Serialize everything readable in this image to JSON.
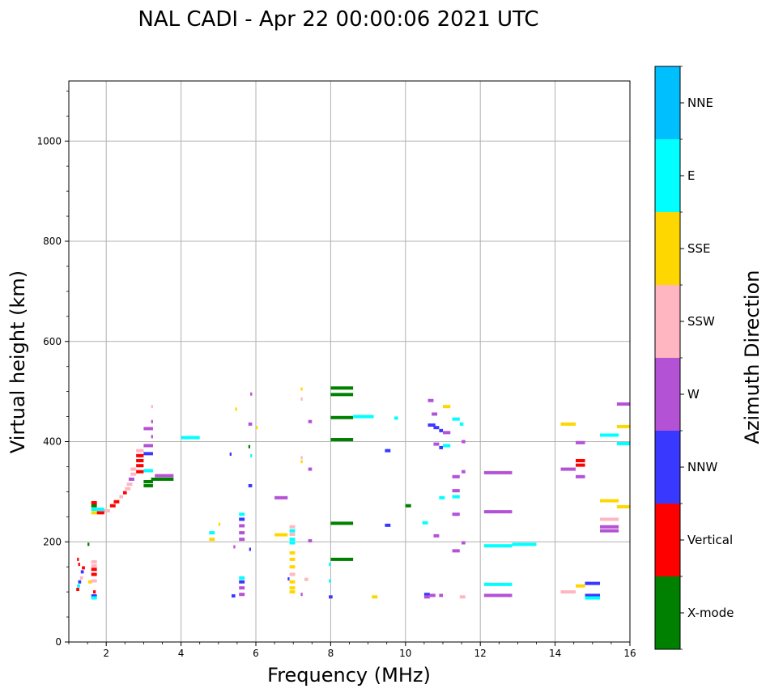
{
  "chart_data": {
    "type": "scatter",
    "title": "NAL CADI - Apr 22 00:00:06 2021 UTC",
    "xlabel": "Frequency (MHz)",
    "ylabel": "Virtual height (km)",
    "xlim": [
      1.0,
      16.0
    ],
    "ylim": [
      0,
      1120
    ],
    "xticks": [
      2,
      4,
      6,
      8,
      10,
      12,
      14,
      16
    ],
    "yticks": [
      0,
      200,
      400,
      600,
      800,
      1000
    ],
    "grid": true,
    "colorbar": {
      "label": "Azimuth Direction",
      "categories": [
        "X-mode",
        "Vertical",
        "NNW",
        "W",
        "SSW",
        "SSE",
        "E",
        "NNE"
      ],
      "colors": [
        "#008000",
        "#ff0000",
        "#3838ff",
        "#b452d6",
        "#ffb6c1",
        "#ffd700",
        "#00ffff",
        "#00bfff"
      ]
    },
    "echoes": [
      {
        "f": 1.65,
        "f2": 1.72,
        "h": 100,
        "dir": "Vertical"
      },
      {
        "f": 1.6,
        "f2": 1.75,
        "h": 92,
        "dir": "NNW"
      },
      {
        "f": 1.6,
        "f2": 1.75,
        "h": 88,
        "dir": "E"
      },
      {
        "f": 1.52,
        "f2": 1.62,
        "h": 120,
        "dir": "SSE"
      },
      {
        "f": 1.6,
        "f2": 1.75,
        "h": 122,
        "dir": "SSW"
      },
      {
        "f": 1.6,
        "f2": 1.75,
        "h": 135,
        "dir": "Vertical"
      },
      {
        "f": 1.6,
        "f2": 1.75,
        "h": 145,
        "dir": "Vertical"
      },
      {
        "f": 1.6,
        "f2": 1.75,
        "h": 152,
        "dir": "SSW"
      },
      {
        "f": 1.6,
        "f2": 1.75,
        "h": 160,
        "dir": "SSW"
      },
      {
        "f": 1.2,
        "f2": 1.28,
        "h": 105,
        "dir": "Vertical"
      },
      {
        "f": 1.22,
        "f2": 1.3,
        "h": 112,
        "dir": "E"
      },
      {
        "f": 1.25,
        "f2": 1.33,
        "h": 120,
        "dir": "NNW"
      },
      {
        "f": 1.3,
        "f2": 1.38,
        "h": 128,
        "dir": "SSW"
      },
      {
        "f": 1.32,
        "f2": 1.4,
        "h": 140,
        "dir": "NNW"
      },
      {
        "f": 1.35,
        "f2": 1.43,
        "h": 148,
        "dir": "Vertical"
      },
      {
        "f": 1.25,
        "f2": 1.3,
        "h": 155,
        "dir": "Vertical"
      },
      {
        "f": 1.22,
        "f2": 1.27,
        "h": 165,
        "dir": "Vertical"
      },
      {
        "f": 1.5,
        "f2": 1.55,
        "h": 195,
        "dir": "X-mode"
      },
      {
        "f": 1.6,
        "f2": 1.75,
        "h": 258,
        "dir": "SSE"
      },
      {
        "f": 1.6,
        "f2": 1.75,
        "h": 265,
        "dir": "E"
      },
      {
        "f": 1.6,
        "f2": 1.75,
        "h": 272,
        "dir": "X-mode"
      },
      {
        "f": 1.6,
        "f2": 1.75,
        "h": 278,
        "dir": "Vertical"
      },
      {
        "f": 1.75,
        "f2": 1.95,
        "h": 258,
        "dir": "Vertical"
      },
      {
        "f": 1.75,
        "f2": 1.95,
        "h": 265,
        "dir": "E"
      },
      {
        "f": 1.95,
        "f2": 2.1,
        "h": 262,
        "dir": "SSW"
      },
      {
        "f": 2.1,
        "f2": 2.25,
        "h": 272,
        "dir": "Vertical"
      },
      {
        "f": 2.2,
        "f2": 2.35,
        "h": 280,
        "dir": "Vertical"
      },
      {
        "f": 2.35,
        "f2": 2.45,
        "h": 290,
        "dir": "SSW"
      },
      {
        "f": 2.45,
        "f2": 2.55,
        "h": 298,
        "dir": "Vertical"
      },
      {
        "f": 2.5,
        "f2": 2.65,
        "h": 306,
        "dir": "SSW"
      },
      {
        "f": 2.55,
        "f2": 2.7,
        "h": 315,
        "dir": "SSW"
      },
      {
        "f": 2.6,
        "f2": 2.75,
        "h": 325,
        "dir": "W"
      },
      {
        "f": 2.65,
        "f2": 2.8,
        "h": 335,
        "dir": "SSW"
      },
      {
        "f": 2.65,
        "f2": 2.8,
        "h": 345,
        "dir": "SSW"
      },
      {
        "f": 2.8,
        "f2": 3.0,
        "h": 340,
        "dir": "Vertical"
      },
      {
        "f": 2.8,
        "f2": 3.0,
        "h": 352,
        "dir": "Vertical"
      },
      {
        "f": 2.8,
        "f2": 3.0,
        "h": 362,
        "dir": "Vertical"
      },
      {
        "f": 2.8,
        "f2": 3.0,
        "h": 372,
        "dir": "Vertical"
      },
      {
        "f": 2.8,
        "f2": 3.0,
        "h": 382,
        "dir": "SSW"
      },
      {
        "f": 3.0,
        "f2": 3.25,
        "h": 312,
        "dir": "X-mode"
      },
      {
        "f": 3.0,
        "f2": 3.25,
        "h": 320,
        "dir": "X-mode"
      },
      {
        "f": 3.0,
        "f2": 3.25,
        "h": 342,
        "dir": "E"
      },
      {
        "f": 3.0,
        "f2": 3.25,
        "h": 376,
        "dir": "NNW"
      },
      {
        "f": 3.0,
        "f2": 3.25,
        "h": 392,
        "dir": "W"
      },
      {
        "f": 3.0,
        "f2": 3.25,
        "h": 426,
        "dir": "W"
      },
      {
        "f": 3.2,
        "f2": 3.8,
        "h": 325,
        "dir": "X-mode"
      },
      {
        "f": 3.3,
        "f2": 3.8,
        "h": 332,
        "dir": "W"
      },
      {
        "f": 3.2,
        "f2": 3.25,
        "h": 410,
        "dir": "W"
      },
      {
        "f": 3.2,
        "f2": 3.25,
        "h": 440,
        "dir": "W"
      },
      {
        "f": 3.2,
        "f2": 3.25,
        "h": 470,
        "dir": "SSW"
      },
      {
        "f": 4.0,
        "f2": 4.5,
        "h": 408,
        "dir": "E"
      },
      {
        "f": 4.75,
        "f2": 4.9,
        "h": 218,
        "dir": "E"
      },
      {
        "f": 4.75,
        "f2": 4.9,
        "h": 205,
        "dir": "SSE"
      },
      {
        "f": 5.0,
        "f2": 5.05,
        "h": 235,
        "dir": "SSE"
      },
      {
        "f": 5.3,
        "f2": 5.35,
        "h": 375,
        "dir": "NNW"
      },
      {
        "f": 5.45,
        "f2": 5.5,
        "h": 465,
        "dir": "SSE"
      },
      {
        "f": 5.55,
        "f2": 5.7,
        "h": 255,
        "dir": "E"
      },
      {
        "f": 5.55,
        "f2": 5.7,
        "h": 245,
        "dir": "NNW"
      },
      {
        "f": 5.55,
        "f2": 5.7,
        "h": 232,
        "dir": "W"
      },
      {
        "f": 5.55,
        "f2": 5.7,
        "h": 218,
        "dir": "W"
      },
      {
        "f": 5.55,
        "f2": 5.7,
        "h": 205,
        "dir": "W"
      },
      {
        "f": 5.55,
        "f2": 5.7,
        "h": 128,
        "dir": "E"
      },
      {
        "f": 5.55,
        "f2": 5.7,
        "h": 120,
        "dir": "NNW"
      },
      {
        "f": 5.55,
        "f2": 5.7,
        "h": 108,
        "dir": "W"
      },
      {
        "f": 5.55,
        "f2": 5.7,
        "h": 95,
        "dir": "W"
      },
      {
        "f": 5.35,
        "f2": 5.45,
        "h": 92,
        "dir": "NNW"
      },
      {
        "f": 5.4,
        "f2": 5.45,
        "h": 190,
        "dir": "W"
      },
      {
        "f": 5.8,
        "f2": 5.9,
        "h": 312,
        "dir": "NNW"
      },
      {
        "f": 5.8,
        "f2": 5.9,
        "h": 435,
        "dir": "W"
      },
      {
        "f": 5.85,
        "f2": 5.9,
        "h": 495,
        "dir": "W"
      },
      {
        "f": 5.82,
        "f2": 5.87,
        "h": 185,
        "dir": "NNW"
      },
      {
        "f": 5.8,
        "f2": 5.85,
        "h": 390,
        "dir": "X-mode"
      },
      {
        "f": 5.85,
        "f2": 5.9,
        "h": 372,
        "dir": "E"
      },
      {
        "f": 6.0,
        "f2": 6.05,
        "h": 428,
        "dir": "SSE"
      },
      {
        "f": 6.5,
        "f2": 6.85,
        "h": 288,
        "dir": "W"
      },
      {
        "f": 6.5,
        "f2": 6.85,
        "h": 214,
        "dir": "SSE"
      },
      {
        "f": 6.9,
        "f2": 7.05,
        "h": 230,
        "dir": "SSW"
      },
      {
        "f": 6.9,
        "f2": 7.05,
        "h": 222,
        "dir": "E"
      },
      {
        "f": 6.9,
        "f2": 7.05,
        "h": 215,
        "dir": "SSW"
      },
      {
        "f": 6.9,
        "f2": 7.05,
        "h": 205,
        "dir": "E"
      },
      {
        "f": 6.9,
        "f2": 7.05,
        "h": 198,
        "dir": "E"
      },
      {
        "f": 6.9,
        "f2": 7.05,
        "h": 178,
        "dir": "SSE"
      },
      {
        "f": 6.9,
        "f2": 7.05,
        "h": 165,
        "dir": "SSE"
      },
      {
        "f": 6.9,
        "f2": 7.05,
        "h": 150,
        "dir": "SSE"
      },
      {
        "f": 6.9,
        "f2": 7.05,
        "h": 135,
        "dir": "SSW"
      },
      {
        "f": 6.9,
        "f2": 7.05,
        "h": 120,
        "dir": "SSE"
      },
      {
        "f": 6.9,
        "f2": 7.05,
        "h": 108,
        "dir": "SSE"
      },
      {
        "f": 6.9,
        "f2": 7.05,
        "h": 100,
        "dir": "SSE"
      },
      {
        "f": 6.85,
        "f2": 6.9,
        "h": 126,
        "dir": "NNW"
      },
      {
        "f": 7.2,
        "f2": 7.25,
        "h": 505,
        "dir": "SSE"
      },
      {
        "f": 7.2,
        "f2": 7.25,
        "h": 485,
        "dir": "SSW"
      },
      {
        "f": 7.2,
        "f2": 7.25,
        "h": 368,
        "dir": "SSW"
      },
      {
        "f": 7.2,
        "f2": 7.25,
        "h": 360,
        "dir": "SSE"
      },
      {
        "f": 7.4,
        "f2": 7.5,
        "h": 440,
        "dir": "W"
      },
      {
        "f": 7.4,
        "f2": 7.5,
        "h": 345,
        "dir": "W"
      },
      {
        "f": 7.4,
        "f2": 7.5,
        "h": 202,
        "dir": "W"
      },
      {
        "f": 7.3,
        "f2": 7.4,
        "h": 125,
        "dir": "SSW"
      },
      {
        "f": 7.2,
        "f2": 7.25,
        "h": 95,
        "dir": "W"
      },
      {
        "f": 8.0,
        "f2": 8.6,
        "h": 507,
        "dir": "X-mode"
      },
      {
        "f": 8.0,
        "f2": 8.6,
        "h": 494,
        "dir": "X-mode"
      },
      {
        "f": 8.0,
        "f2": 8.6,
        "h": 448,
        "dir": "X-mode"
      },
      {
        "f": 8.0,
        "f2": 8.6,
        "h": 404,
        "dir": "X-mode"
      },
      {
        "f": 8.0,
        "f2": 8.6,
        "h": 237,
        "dir": "X-mode"
      },
      {
        "f": 8.0,
        "f2": 8.6,
        "h": 165,
        "dir": "X-mode"
      },
      {
        "f": 7.95,
        "f2": 8.0,
        "h": 155,
        "dir": "E"
      },
      {
        "f": 7.95,
        "f2": 8.0,
        "h": 122,
        "dir": "E"
      },
      {
        "f": 7.95,
        "f2": 8.05,
        "h": 90,
        "dir": "NNW"
      },
      {
        "f": 8.6,
        "f2": 9.15,
        "h": 450,
        "dir": "E"
      },
      {
        "f": 9.1,
        "f2": 9.25,
        "h": 90,
        "dir": "SSE"
      },
      {
        "f": 9.45,
        "f2": 9.6,
        "h": 382,
        "dir": "NNW"
      },
      {
        "f": 9.45,
        "f2": 9.6,
        "h": 233,
        "dir": "NNW"
      },
      {
        "f": 9.7,
        "f2": 9.8,
        "h": 447,
        "dir": "E"
      },
      {
        "f": 10.0,
        "f2": 10.15,
        "h": 272,
        "dir": "X-mode"
      },
      {
        "f": 10.45,
        "f2": 10.6,
        "h": 238,
        "dir": "E"
      },
      {
        "f": 10.5,
        "f2": 10.65,
        "h": 95,
        "dir": "NNW"
      },
      {
        "f": 10.5,
        "f2": 10.65,
        "h": 90,
        "dir": "W"
      },
      {
        "f": 10.6,
        "f2": 10.75,
        "h": 482,
        "dir": "W"
      },
      {
        "f": 10.7,
        "f2": 10.85,
        "h": 455,
        "dir": "W"
      },
      {
        "f": 10.6,
        "f2": 10.8,
        "h": 433,
        "dir": "NNW"
      },
      {
        "f": 10.75,
        "f2": 10.9,
        "h": 428,
        "dir": "NNW"
      },
      {
        "f": 10.9,
        "f2": 11.0,
        "h": 422,
        "dir": "NNW"
      },
      {
        "f": 10.75,
        "f2": 10.9,
        "h": 395,
        "dir": "W"
      },
      {
        "f": 10.9,
        "f2": 11.0,
        "h": 388,
        "dir": "NNW"
      },
      {
        "f": 11.0,
        "f2": 11.2,
        "h": 392,
        "dir": "E"
      },
      {
        "f": 10.9,
        "f2": 11.05,
        "h": 288,
        "dir": "E"
      },
      {
        "f": 10.75,
        "f2": 10.9,
        "h": 212,
        "dir": "W"
      },
      {
        "f": 10.65,
        "f2": 10.8,
        "h": 93,
        "dir": "W"
      },
      {
        "f": 10.9,
        "f2": 11.0,
        "h": 93,
        "dir": "W"
      },
      {
        "f": 11.0,
        "f2": 11.2,
        "h": 470,
        "dir": "SSE"
      },
      {
        "f": 11.0,
        "f2": 11.2,
        "h": 418,
        "dir": "W"
      },
      {
        "f": 11.25,
        "f2": 11.45,
        "h": 445,
        "dir": "E"
      },
      {
        "f": 11.45,
        "f2": 11.55,
        "h": 435,
        "dir": "E"
      },
      {
        "f": 11.5,
        "f2": 11.6,
        "h": 400,
        "dir": "W"
      },
      {
        "f": 11.5,
        "f2": 11.6,
        "h": 340,
        "dir": "W"
      },
      {
        "f": 11.25,
        "f2": 11.45,
        "h": 330,
        "dir": "W"
      },
      {
        "f": 11.25,
        "f2": 11.45,
        "h": 302,
        "dir": "W"
      },
      {
        "f": 11.25,
        "f2": 11.45,
        "h": 290,
        "dir": "E"
      },
      {
        "f": 11.25,
        "f2": 11.45,
        "h": 255,
        "dir": "W"
      },
      {
        "f": 11.5,
        "f2": 11.6,
        "h": 198,
        "dir": "W"
      },
      {
        "f": 11.25,
        "f2": 11.45,
        "h": 182,
        "dir": "W"
      },
      {
        "f": 11.45,
        "f2": 11.6,
        "h": 90,
        "dir": "SSW"
      },
      {
        "f": 12.1,
        "f2": 12.85,
        "h": 338,
        "dir": "W"
      },
      {
        "f": 12.1,
        "f2": 12.85,
        "h": 260,
        "dir": "W"
      },
      {
        "f": 12.1,
        "f2": 12.85,
        "h": 192,
        "dir": "E"
      },
      {
        "f": 12.85,
        "f2": 13.5,
        "h": 195,
        "dir": "E"
      },
      {
        "f": 12.1,
        "f2": 12.85,
        "h": 115,
        "dir": "E"
      },
      {
        "f": 12.1,
        "f2": 12.85,
        "h": 93,
        "dir": "W"
      },
      {
        "f": 14.15,
        "f2": 14.55,
        "h": 435,
        "dir": "SSE"
      },
      {
        "f": 14.15,
        "f2": 14.55,
        "h": 345,
        "dir": "W"
      },
      {
        "f": 14.15,
        "f2": 14.55,
        "h": 100,
        "dir": "SSW"
      },
      {
        "f": 14.55,
        "f2": 14.8,
        "h": 398,
        "dir": "W"
      },
      {
        "f": 14.55,
        "f2": 14.8,
        "h": 362,
        "dir": "Vertical"
      },
      {
        "f": 14.55,
        "f2": 14.8,
        "h": 353,
        "dir": "Vertical"
      },
      {
        "f": 14.55,
        "f2": 14.8,
        "h": 330,
        "dir": "W"
      },
      {
        "f": 14.55,
        "f2": 14.8,
        "h": 112,
        "dir": "SSE"
      },
      {
        "f": 14.8,
        "f2": 15.2,
        "h": 117,
        "dir": "NNW"
      },
      {
        "f": 14.8,
        "f2": 15.2,
        "h": 93,
        "dir": "NNW"
      },
      {
        "f": 14.8,
        "f2": 15.2,
        "h": 88,
        "dir": "E"
      },
      {
        "f": 15.2,
        "f2": 15.7,
        "h": 413,
        "dir": "E"
      },
      {
        "f": 15.2,
        "f2": 15.7,
        "h": 282,
        "dir": "SSE"
      },
      {
        "f": 15.2,
        "f2": 15.7,
        "h": 245,
        "dir": "SSW"
      },
      {
        "f": 15.2,
        "f2": 15.7,
        "h": 230,
        "dir": "W"
      },
      {
        "f": 15.2,
        "f2": 15.7,
        "h": 222,
        "dir": "W"
      },
      {
        "f": 15.65,
        "f2": 16.0,
        "h": 475,
        "dir": "W"
      },
      {
        "f": 15.65,
        "f2": 16.0,
        "h": 430,
        "dir": "SSE"
      },
      {
        "f": 15.65,
        "f2": 16.0,
        "h": 396,
        "dir": "E"
      },
      {
        "f": 15.65,
        "f2": 16.0,
        "h": 270,
        "dir": "SSE"
      }
    ]
  }
}
